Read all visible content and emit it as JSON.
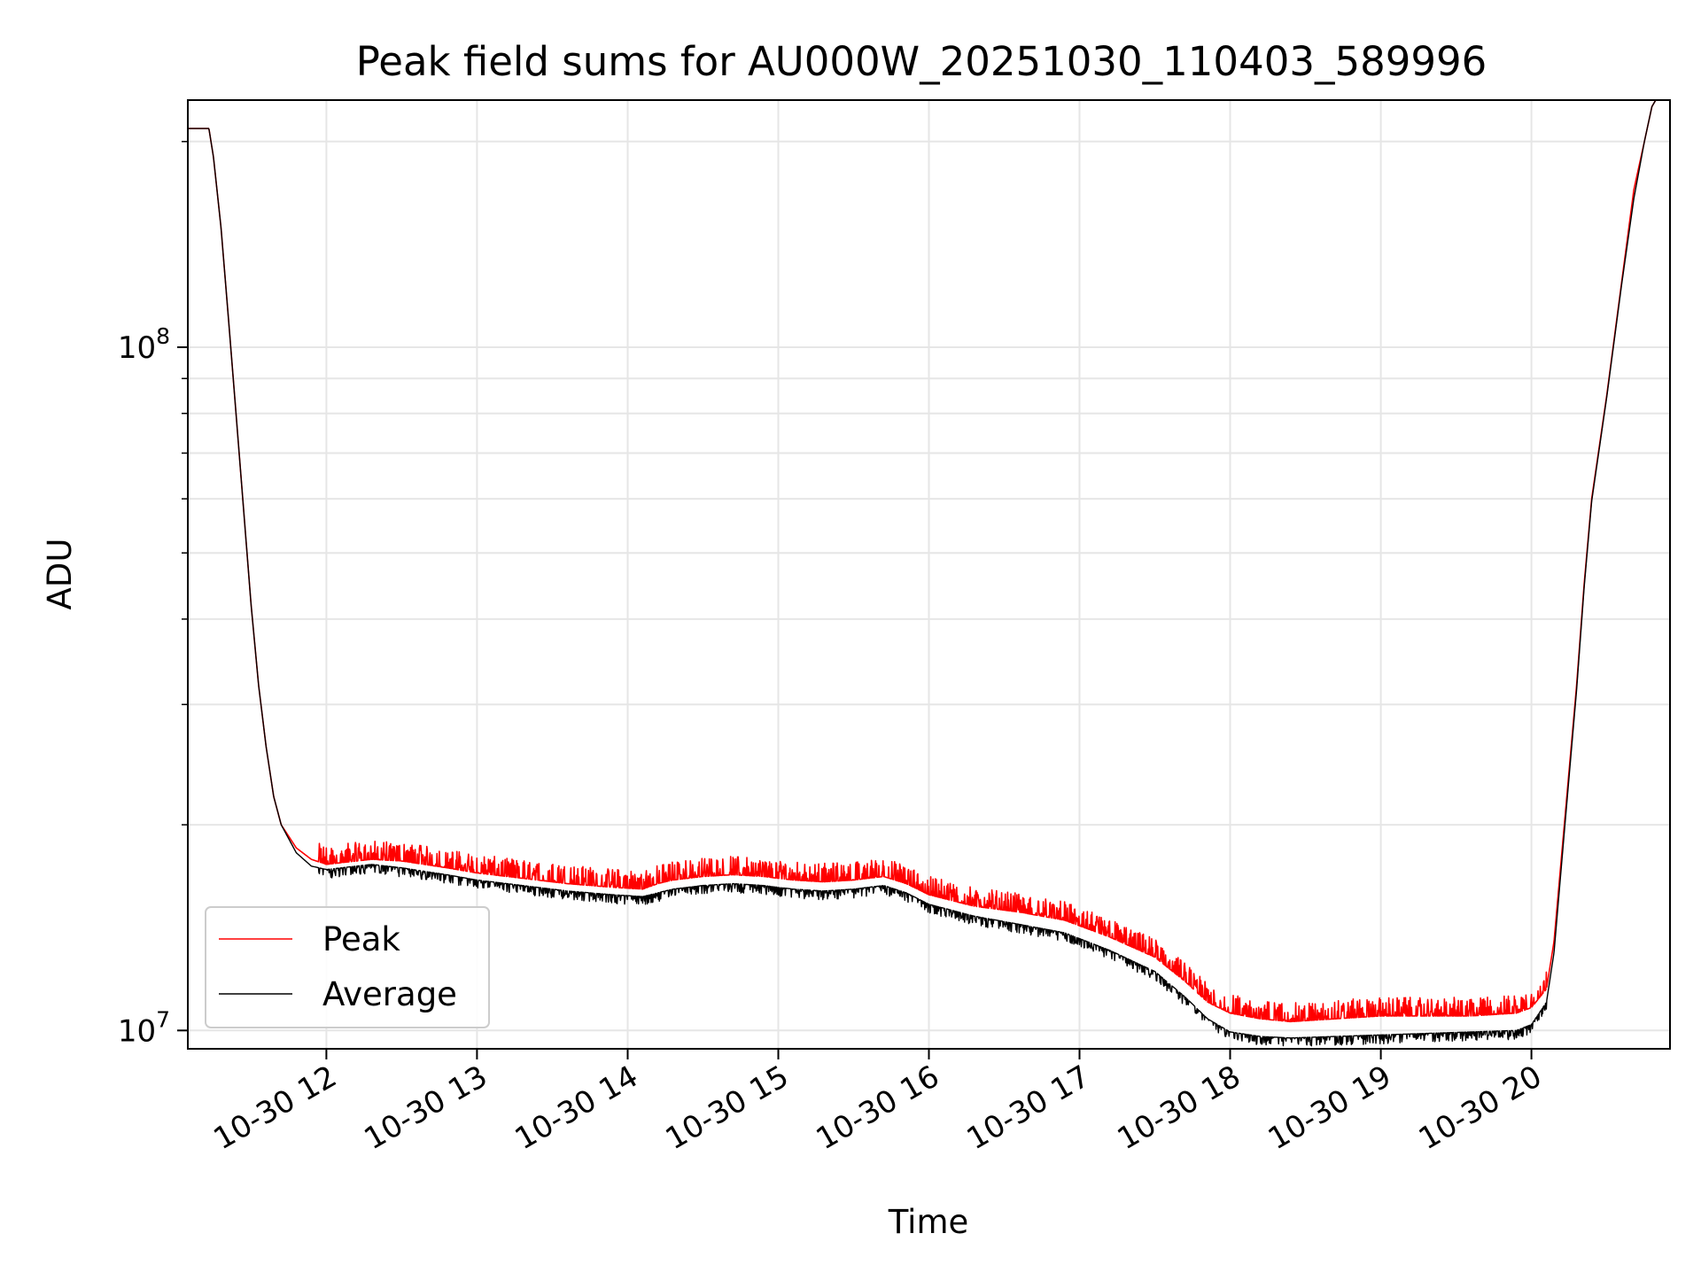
{
  "chart_data": {
    "type": "line",
    "title": "Peak field sums for AU000W_20251030_110403_589996",
    "xlabel": "Time",
    "ylabel": "ADU",
    "x_unit": "hours since 2025-10-30 00:00",
    "xlim": [
      11.08,
      20.92
    ],
    "ylim": [
      9400000,
      230000000
    ],
    "yscale": "log",
    "grid": true,
    "legend_position": "lower-left",
    "x_ticks": [
      {
        "value": 12,
        "label": "10-30 12"
      },
      {
        "value": 13,
        "label": "10-30 13"
      },
      {
        "value": 14,
        "label": "10-30 14"
      },
      {
        "value": 15,
        "label": "10-30 15"
      },
      {
        "value": 16,
        "label": "10-30 16"
      },
      {
        "value": 17,
        "label": "10-30 17"
      },
      {
        "value": 18,
        "label": "10-30 18"
      },
      {
        "value": 19,
        "label": "10-30 19"
      },
      {
        "value": 20,
        "label": "10-30 20"
      }
    ],
    "y_major_ticks": [
      {
        "value": 10000000,
        "base": "10",
        "exp": "7"
      },
      {
        "value": 100000000,
        "base": "10",
        "exp": "8"
      }
    ],
    "y_minor_ticks": [
      20000000,
      30000000,
      40000000,
      50000000,
      60000000,
      70000000,
      80000000,
      90000000,
      200000000
    ],
    "series": [
      {
        "name": "Peak",
        "color": "#ff0000",
        "spike_amplitude": 0.065,
        "x": [
          11.08,
          11.22,
          11.25,
          11.3,
          11.35,
          11.4,
          11.45,
          11.5,
          11.55,
          11.6,
          11.65,
          11.7,
          11.8,
          11.9,
          12.0,
          12.1,
          12.3,
          12.5,
          12.8,
          13.0,
          13.3,
          13.6,
          13.9,
          14.1,
          14.2,
          14.3,
          14.5,
          14.7,
          14.9,
          15.1,
          15.3,
          15.5,
          15.7,
          15.85,
          16.0,
          16.3,
          16.6,
          16.9,
          17.2,
          17.5,
          17.7,
          17.85,
          18.0,
          18.2,
          18.4,
          18.7,
          19.0,
          19.3,
          19.6,
          19.9,
          20.0,
          20.1,
          20.15,
          20.2,
          20.25,
          20.3,
          20.35,
          20.4,
          20.5,
          20.6,
          20.68,
          20.75,
          20.8,
          20.85
        ],
        "y": [
          209000000,
          209000000,
          190000000,
          150000000,
          110000000,
          80000000,
          58000000,
          42000000,
          32000000,
          26000000,
          22000000,
          20000000,
          18500000,
          17800000,
          17500000,
          17600000,
          17800000,
          17700000,
          17300000,
          17000000,
          16700000,
          16400000,
          16200000,
          16100000,
          16400000,
          16600000,
          16800000,
          16900000,
          16800000,
          16600000,
          16500000,
          16600000,
          16800000,
          16400000,
          15800000,
          15200000,
          14900000,
          14500000,
          13700000,
          12800000,
          11800000,
          11000000,
          10600000,
          10400000,
          10300000,
          10400000,
          10500000,
          10500000,
          10500000,
          10600000,
          10800000,
          11500000,
          13500000,
          18000000,
          24000000,
          32000000,
          45000000,
          60000000,
          85000000,
          125000000,
          170000000,
          200000000,
          225000000,
          235000000
        ]
      },
      {
        "name": "Average",
        "color": "#000000",
        "spike_amplitude": 0.03,
        "x": [
          11.08,
          11.22,
          11.25,
          11.3,
          11.35,
          11.4,
          11.45,
          11.5,
          11.55,
          11.6,
          11.65,
          11.7,
          11.8,
          11.9,
          12.0,
          12.1,
          12.3,
          12.5,
          12.8,
          13.0,
          13.3,
          13.6,
          13.9,
          14.1,
          14.2,
          14.3,
          14.5,
          14.7,
          14.9,
          15.1,
          15.3,
          15.5,
          15.7,
          15.85,
          16.0,
          16.3,
          16.6,
          16.9,
          17.2,
          17.5,
          17.7,
          17.85,
          18.0,
          18.2,
          18.4,
          18.7,
          19.0,
          19.3,
          19.6,
          19.9,
          20.0,
          20.1,
          20.15,
          20.2,
          20.25,
          20.3,
          20.35,
          20.4,
          20.5,
          20.6,
          20.68,
          20.75,
          20.8,
          20.85
        ],
        "y": [
          209000000,
          209000000,
          190000000,
          150000000,
          110000000,
          80000000,
          58000000,
          42000000,
          32000000,
          26000000,
          22000000,
          20000000,
          18200000,
          17400000,
          17200000,
          17300000,
          17500000,
          17300000,
          16900000,
          16600000,
          16300000,
          16000000,
          15800000,
          15700000,
          15900000,
          16100000,
          16300000,
          16400000,
          16300000,
          16100000,
          16000000,
          16100000,
          16300000,
          15900000,
          15300000,
          14700000,
          14300000,
          13900000,
          13100000,
          12200000,
          11200000,
          10400000,
          9950000,
          9800000,
          9750000,
          9800000,
          9850000,
          9900000,
          9950000,
          10000000,
          10200000,
          11000000,
          13000000,
          17500000,
          23500000,
          31500000,
          44500000,
          59500000,
          84500000,
          124000000,
          165000000,
          200000000,
          225000000,
          235000000
        ]
      }
    ]
  }
}
